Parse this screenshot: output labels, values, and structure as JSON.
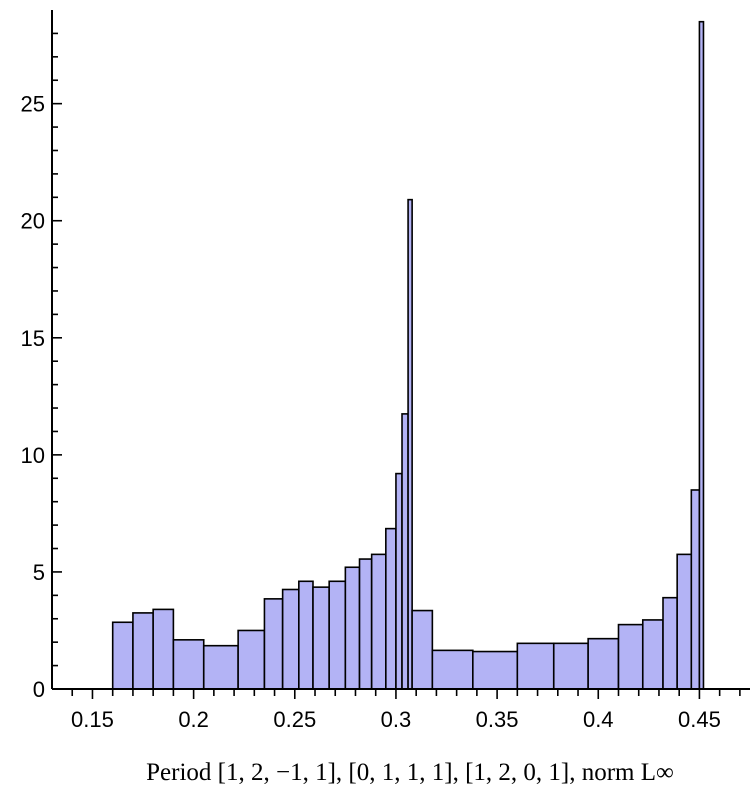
{
  "chart_data": {
    "type": "bar",
    "title": "",
    "xlabel": "Period [1, 2, −1, 1], [0, 1, 1, 1], [1, 2, 0, 1], norm L∞",
    "ylabel": "",
    "xlim": [
      0.13,
      0.475
    ],
    "ylim": [
      0,
      29
    ],
    "bar_color": "#b3b3f5",
    "edge_color": "#000000",
    "x_ticks": [
      0.15,
      0.2,
      0.25,
      0.3,
      0.35,
      0.4,
      0.45
    ],
    "x_tick_labels": [
      "0.15",
      "0.2",
      "0.25",
      "0.3",
      "0.35",
      "0.4",
      "0.45"
    ],
    "y_ticks": [
      0,
      5,
      10,
      15,
      20,
      25
    ],
    "y_tick_labels": [
      "0",
      "5",
      "10",
      "15",
      "20",
      "25"
    ],
    "bins": [
      {
        "x0": 0.16,
        "x1": 0.17,
        "value": 2.85
      },
      {
        "x0": 0.17,
        "x1": 0.18,
        "value": 3.25
      },
      {
        "x0": 0.18,
        "x1": 0.19,
        "value": 3.4
      },
      {
        "x0": 0.19,
        "x1": 0.205,
        "value": 2.1
      },
      {
        "x0": 0.205,
        "x1": 0.222,
        "value": 1.85
      },
      {
        "x0": 0.222,
        "x1": 0.235,
        "value": 2.5
      },
      {
        "x0": 0.235,
        "x1": 0.244,
        "value": 3.85
      },
      {
        "x0": 0.244,
        "x1": 0.252,
        "value": 4.25
      },
      {
        "x0": 0.252,
        "x1": 0.259,
        "value": 4.6
      },
      {
        "x0": 0.259,
        "x1": 0.267,
        "value": 4.35
      },
      {
        "x0": 0.267,
        "x1": 0.275,
        "value": 4.6
      },
      {
        "x0": 0.275,
        "x1": 0.282,
        "value": 5.2
      },
      {
        "x0": 0.282,
        "x1": 0.288,
        "value": 5.55
      },
      {
        "x0": 0.288,
        "x1": 0.295,
        "value": 5.75
      },
      {
        "x0": 0.295,
        "x1": 0.3,
        "value": 6.85
      },
      {
        "x0": 0.3,
        "x1": 0.303,
        "value": 9.2
      },
      {
        "x0": 0.303,
        "x1": 0.306,
        "value": 11.75
      },
      {
        "x0": 0.306,
        "x1": 0.308,
        "value": 20.9
      },
      {
        "x0": 0.308,
        "x1": 0.318,
        "value": 3.35
      },
      {
        "x0": 0.318,
        "x1": 0.338,
        "value": 1.65
      },
      {
        "x0": 0.338,
        "x1": 0.36,
        "value": 1.6
      },
      {
        "x0": 0.36,
        "x1": 0.378,
        "value": 1.95
      },
      {
        "x0": 0.378,
        "x1": 0.395,
        "value": 1.95
      },
      {
        "x0": 0.395,
        "x1": 0.41,
        "value": 2.15
      },
      {
        "x0": 0.41,
        "x1": 0.422,
        "value": 2.75
      },
      {
        "x0": 0.422,
        "x1": 0.432,
        "value": 2.95
      },
      {
        "x0": 0.432,
        "x1": 0.439,
        "value": 3.9
      },
      {
        "x0": 0.439,
        "x1": 0.446,
        "value": 5.75
      },
      {
        "x0": 0.446,
        "x1": 0.45,
        "value": 8.5
      },
      {
        "x0": 0.45,
        "x1": 0.452,
        "value": 28.5
      }
    ]
  }
}
